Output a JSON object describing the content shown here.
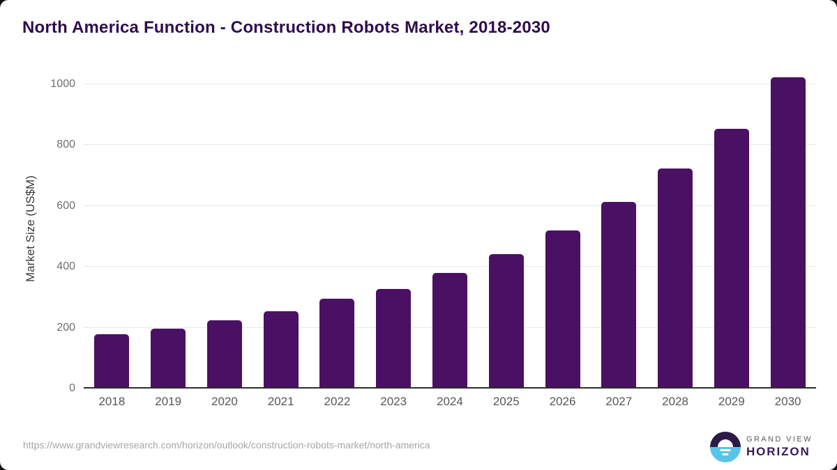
{
  "title": "North America Function - Construction Robots Market, 2018-2030",
  "footer": {
    "source_url": "https://www.grandviewresearch.com/horizon/outlook/construction-robots-market/north-america",
    "logo": {
      "brand_top": "GRAND VIEW",
      "brand_bottom": "HORIZON"
    }
  },
  "colors": {
    "bar": "#4a1063",
    "title_text": "#2e0d4b",
    "axis_line": "#2d2d2d",
    "gridline": "#e8e8e8",
    "y_tick_label": "#6f6f6f",
    "x_tick_label": "#565656",
    "source_url_text": "#a6a6a6",
    "logo_purple": "#2c1a45",
    "logo_blue": "#58c4e9",
    "logo_horizon_text": "#361a52"
  },
  "chart_data": {
    "type": "bar",
    "title": "North America Function - Construction Robots Market, 2018-2030",
    "categories": [
      "2018",
      "2019",
      "2020",
      "2021",
      "2022",
      "2023",
      "2024",
      "2025",
      "2026",
      "2027",
      "2028",
      "2029",
      "2030"
    ],
    "values": [
      175,
      195,
      222,
      252,
      292,
      325,
      378,
      440,
      517,
      610,
      720,
      850,
      1020
    ],
    "xlabel": "",
    "ylabel": "Market Size (US$M)",
    "ylim": [
      0,
      1050
    ],
    "yticks": [
      0,
      200,
      400,
      600,
      800,
      1000
    ],
    "grid": true,
    "legend": false,
    "bar_color": "#4a1063"
  }
}
